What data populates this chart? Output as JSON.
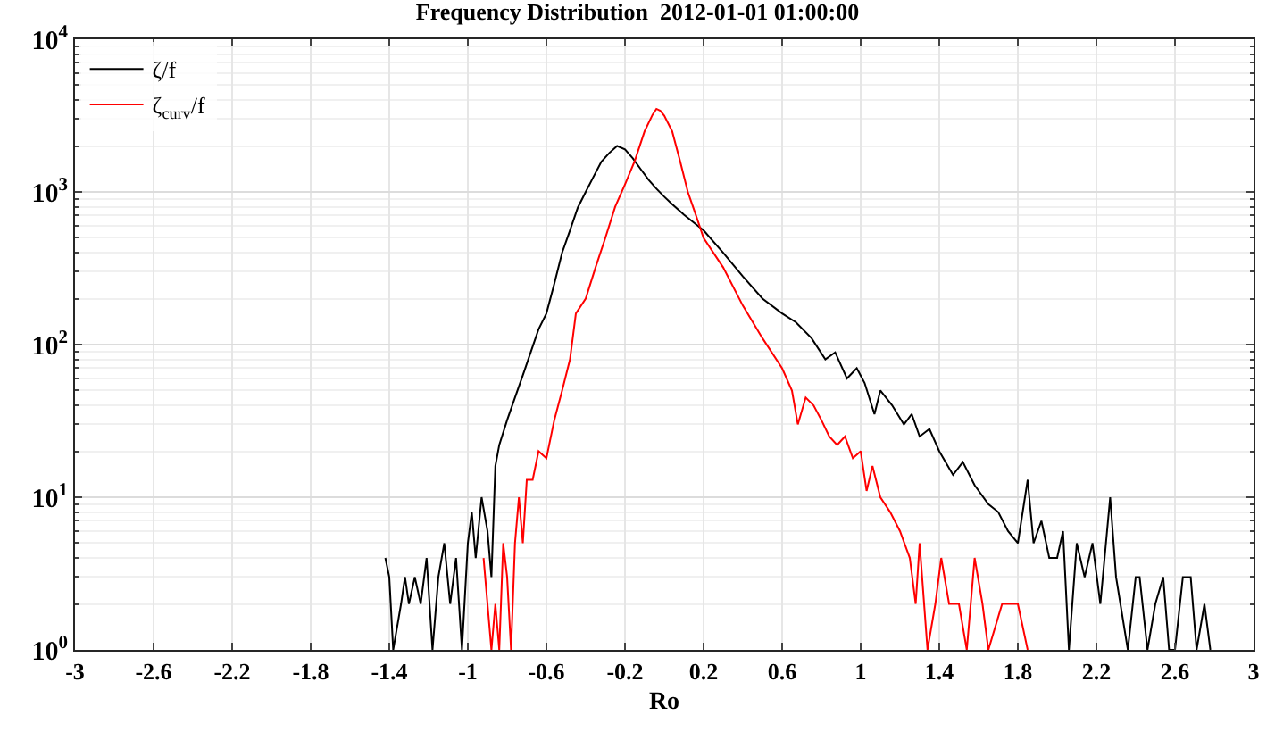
{
  "chart_data": {
    "type": "line",
    "title": "Frequency Distribution  2012-01-01 01:00:00",
    "xlabel": "Ro",
    "xlim": [
      -3,
      3
    ],
    "xticks": [
      -3,
      -2.6,
      -2.2,
      -1.8,
      -1.4,
      -1,
      -0.6,
      -0.2,
      0.2,
      0.6,
      1,
      1.4,
      1.8,
      2.2,
      2.6,
      3
    ],
    "ylim": [
      1,
      10000
    ],
    "log": "y",
    "yticks": [
      {
        "value": 1,
        "label": "10$^{0}$"
      },
      {
        "value": 10,
        "label": "10$^{1}$"
      },
      {
        "value": 100,
        "label": "10$^{2}$"
      },
      {
        "value": 1000,
        "label": "10$^{3}$"
      },
      {
        "value": 10000,
        "label": "10$^{4}$"
      }
    ],
    "grid": true,
    "legend": "top left",
    "line_style": "solid",
    "marker": "none",
    "series": [
      {
        "name": "ζ/f",
        "color": "#000000",
        "x": [
          -1.42,
          -1.4,
          -1.38,
          -1.34,
          -1.32,
          -1.3,
          -1.27,
          -1.24,
          -1.21,
          -1.18,
          -1.15,
          -1.12,
          -1.09,
          -1.06,
          -1.03,
          -1.0,
          -0.98,
          -0.96,
          -0.93,
          -0.9,
          -0.88,
          -0.86,
          -0.84,
          -0.8,
          -0.76,
          -0.72,
          -0.68,
          -0.64,
          -0.6,
          -0.56,
          -0.52,
          -0.48,
          -0.44,
          -0.4,
          -0.36,
          -0.32,
          -0.28,
          -0.24,
          -0.2,
          -0.16,
          -0.12,
          -0.08,
          -0.04,
          0,
          0.04,
          0.1,
          0.2,
          0.3,
          0.4,
          0.5,
          0.6,
          0.67,
          0.75,
          0.82,
          0.87,
          0.93,
          0.98,
          1.02,
          1.07,
          1.1,
          1.16,
          1.22,
          1.26,
          1.3,
          1.35,
          1.4,
          1.47,
          1.52,
          1.58,
          1.65,
          1.7,
          1.75,
          1.8,
          1.85,
          1.88,
          1.92,
          1.96,
          2.0,
          2.03,
          2.06,
          2.1,
          2.14,
          2.18,
          2.22,
          2.27,
          2.3,
          2.36,
          2.4,
          2.42,
          2.46,
          2.5,
          2.54,
          2.57,
          2.6,
          2.64,
          2.68,
          2.71,
          2.75,
          2.78
        ],
        "values": [
          4,
          3,
          1,
          2,
          3,
          2,
          3,
          2,
          4,
          1,
          3,
          5,
          2,
          4,
          1,
          5,
          8,
          4,
          10,
          6,
          3,
          16,
          22,
          32,
          45,
          63,
          89,
          126,
          160,
          250,
          400,
          560,
          790,
          1000,
          1260,
          1580,
          1800,
          2000,
          1900,
          1660,
          1410,
          1200,
          1050,
          930,
          830,
          710,
          560,
          400,
          280,
          200,
          160,
          140,
          110,
          80,
          89,
          60,
          70,
          56,
          35,
          50,
          40,
          30,
          35,
          25,
          28,
          20,
          14,
          17,
          12,
          9,
          8,
          6,
          5,
          13,
          5,
          7,
          4,
          4,
          6,
          1,
          5,
          3,
          5,
          2,
          10,
          3,
          1,
          3,
          3,
          1,
          2,
          3,
          1,
          1,
          3,
          3,
          1,
          2,
          1
        ]
      },
      {
        "name": "ζ$_{curv}$/f",
        "color": "#ff0000",
        "x": [
          -0.92,
          -0.9,
          -0.88,
          -0.86,
          -0.84,
          -0.82,
          -0.8,
          -0.78,
          -0.76,
          -0.74,
          -0.72,
          -0.7,
          -0.67,
          -0.64,
          -0.6,
          -0.56,
          -0.52,
          -0.48,
          -0.45,
          -0.4,
          -0.35,
          -0.3,
          -0.25,
          -0.2,
          -0.15,
          -0.1,
          -0.06,
          -0.04,
          -0.02,
          0,
          0.04,
          0.08,
          0.12,
          0.16,
          0.2,
          0.3,
          0.4,
          0.5,
          0.6,
          0.65,
          0.68,
          0.72,
          0.76,
          0.8,
          0.84,
          0.88,
          0.92,
          0.96,
          1.0,
          1.03,
          1.06,
          1.1,
          1.15,
          1.2,
          1.25,
          1.28,
          1.3,
          1.34,
          1.38,
          1.41,
          1.45,
          1.5,
          1.54,
          1.58,
          1.62,
          1.65,
          1.72,
          1.8,
          1.85
        ],
        "values": [
          4,
          2,
          1,
          2,
          1,
          5,
          3,
          1,
          5,
          10,
          5,
          13,
          13,
          20,
          18,
          32,
          50,
          80,
          160,
          200,
          320,
          500,
          800,
          1120,
          1600,
          2500,
          3200,
          3500,
          3400,
          3160,
          2500,
          1600,
          1000,
          710,
          500,
          320,
          180,
          110,
          70,
          50,
          30,
          45,
          40,
          32,
          25,
          22,
          25,
          18,
          20,
          11,
          16,
          10,
          8,
          6,
          4,
          2,
          5,
          1,
          2,
          4,
          2,
          2,
          1,
          4,
          2,
          1,
          2,
          2,
          1
        ]
      }
    ]
  }
}
